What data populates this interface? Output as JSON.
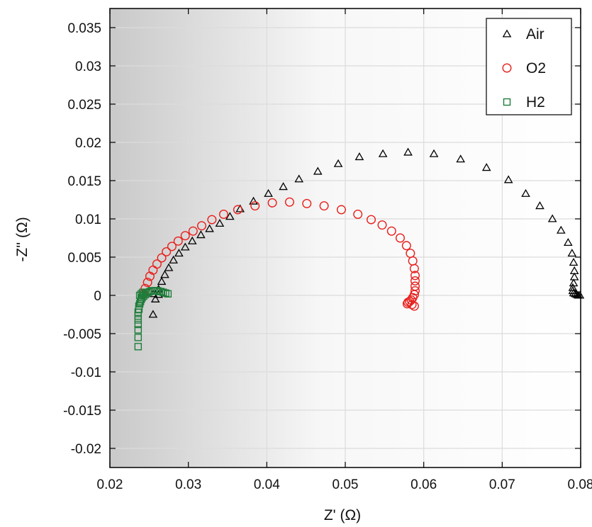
{
  "chart_data": {
    "type": "scatter",
    "title": "",
    "xlabel": "Z' (Ω)",
    "ylabel": "-Z'' (Ω)",
    "xlim": [
      0.02,
      0.08
    ],
    "ylim": [
      -0.0225,
      0.0375
    ],
    "xticks": [
      0.02,
      0.03,
      0.04,
      0.05,
      0.06,
      0.07,
      0.08
    ],
    "xtick_labels": [
      "0.02",
      "0.03",
      "0.04",
      "0.05",
      "0.06",
      "0.07",
      "0.08"
    ],
    "yticks": [
      0.035,
      0.03,
      0.025,
      0.02,
      0.015,
      0.01,
      0.005,
      0,
      -0.005,
      -0.01,
      -0.015,
      -0.02
    ],
    "ytick_labels": [
      "0.035",
      "0.03",
      "0.025",
      "0.02",
      "0.015",
      "0.01",
      "0.005",
      "0",
      "-0.005",
      "-0.01",
      "-0.015",
      "-0.02"
    ],
    "grid": true,
    "legend_position": "top-right",
    "series": [
      {
        "name": "Air",
        "marker": "triangle",
        "color": "#000000",
        "x": [
          0.0255,
          0.0258,
          0.0262,
          0.0266,
          0.027,
          0.0275,
          0.0281,
          0.0288,
          0.0296,
          0.0305,
          0.0316,
          0.0327,
          0.034,
          0.0353,
          0.0366,
          0.0383,
          0.0402,
          0.0421,
          0.0441,
          0.0465,
          0.0491,
          0.0518,
          0.0548,
          0.058,
          0.0613,
          0.0647,
          0.068,
          0.0708,
          0.073,
          0.0748,
          0.0764,
          0.0775,
          0.0784,
          0.0789,
          0.0791,
          0.0792,
          0.0792,
          0.0791,
          0.079,
          0.079,
          0.0791,
          0.0793,
          0.0795,
          0.0797,
          0.0799,
          0.0255,
          0.0262
        ],
        "y": [
          -0.0025,
          -0.0005,
          0.0008,
          0.0018,
          0.0027,
          0.0036,
          0.0046,
          0.0055,
          0.0063,
          0.0071,
          0.0079,
          0.0087,
          0.0094,
          0.0103,
          0.0113,
          0.0123,
          0.0133,
          0.0142,
          0.0152,
          0.0162,
          0.0172,
          0.0181,
          0.0185,
          0.0187,
          0.0185,
          0.0178,
          0.0167,
          0.0151,
          0.0133,
          0.0117,
          0.01,
          0.0085,
          0.0069,
          0.0055,
          0.0043,
          0.0032,
          0.0024,
          0.0016,
          0.001,
          0.0006,
          0.0003,
          0.0002,
          0.0001,
          0.0,
          0.0,
          0.0002,
          0.0001
        ]
      },
      {
        "name": "O2",
        "marker": "circle",
        "color": "#e8201c",
        "x": [
          0.0243,
          0.0245,
          0.0248,
          0.0251,
          0.0255,
          0.026,
          0.0266,
          0.0272,
          0.0279,
          0.0287,
          0.0296,
          0.0306,
          0.0317,
          0.033,
          0.0345,
          0.0363,
          0.0385,
          0.0407,
          0.0429,
          0.0451,
          0.0473,
          0.0495,
          0.0516,
          0.0533,
          0.0547,
          0.0559,
          0.057,
          0.0578,
          0.0583,
          0.0586,
          0.0588,
          0.0589,
          0.0589,
          0.0589,
          0.0589,
          0.0588,
          0.0586,
          0.0584,
          0.0582,
          0.058,
          0.0579,
          0.0585,
          0.0588
        ],
        "y": [
          0.0002,
          0.0009,
          0.0017,
          0.0025,
          0.0033,
          0.0041,
          0.0049,
          0.0057,
          0.0064,
          0.0071,
          0.0078,
          0.0084,
          0.0091,
          0.0099,
          0.0106,
          0.0112,
          0.0117,
          0.0121,
          0.0122,
          0.012,
          0.0117,
          0.0112,
          0.0106,
          0.0099,
          0.0092,
          0.0084,
          0.0075,
          0.0065,
          0.0055,
          0.0045,
          0.0035,
          0.0026,
          0.0019,
          0.0012,
          0.0006,
          0.0001,
          -0.0003,
          -0.0006,
          -0.0008,
          -0.0009,
          -0.0011,
          -0.0012,
          -0.0014
        ]
      },
      {
        "name": "H2",
        "marker": "square",
        "color": "#1e7d3a",
        "x": [
          0.0236,
          0.0236,
          0.0236,
          0.0236,
          0.0236,
          0.0236,
          0.0236,
          0.0237,
          0.0237,
          0.0238,
          0.0239,
          0.024,
          0.0241,
          0.0243,
          0.0245,
          0.0247,
          0.0249,
          0.0251,
          0.0253,
          0.0255,
          0.0257,
          0.0259,
          0.0261,
          0.0263,
          0.0265,
          0.0268,
          0.0271,
          0.0274,
          0.0238,
          0.024,
          0.0242
        ],
        "y": [
          -0.0067,
          -0.0055,
          -0.0045,
          -0.0038,
          -0.0032,
          -0.0027,
          -0.0022,
          -0.0018,
          -0.0014,
          -0.0011,
          -0.0008,
          -0.0005,
          -0.0003,
          -0.0001,
          0.0001,
          0.0003,
          0.0004,
          0.0005,
          0.0006,
          0.0006,
          0.0006,
          0.0006,
          0.0006,
          0.0005,
          0.0005,
          0.0004,
          0.0003,
          0.0002,
          0.0,
          0.0002,
          0.0004
        ]
      }
    ]
  }
}
